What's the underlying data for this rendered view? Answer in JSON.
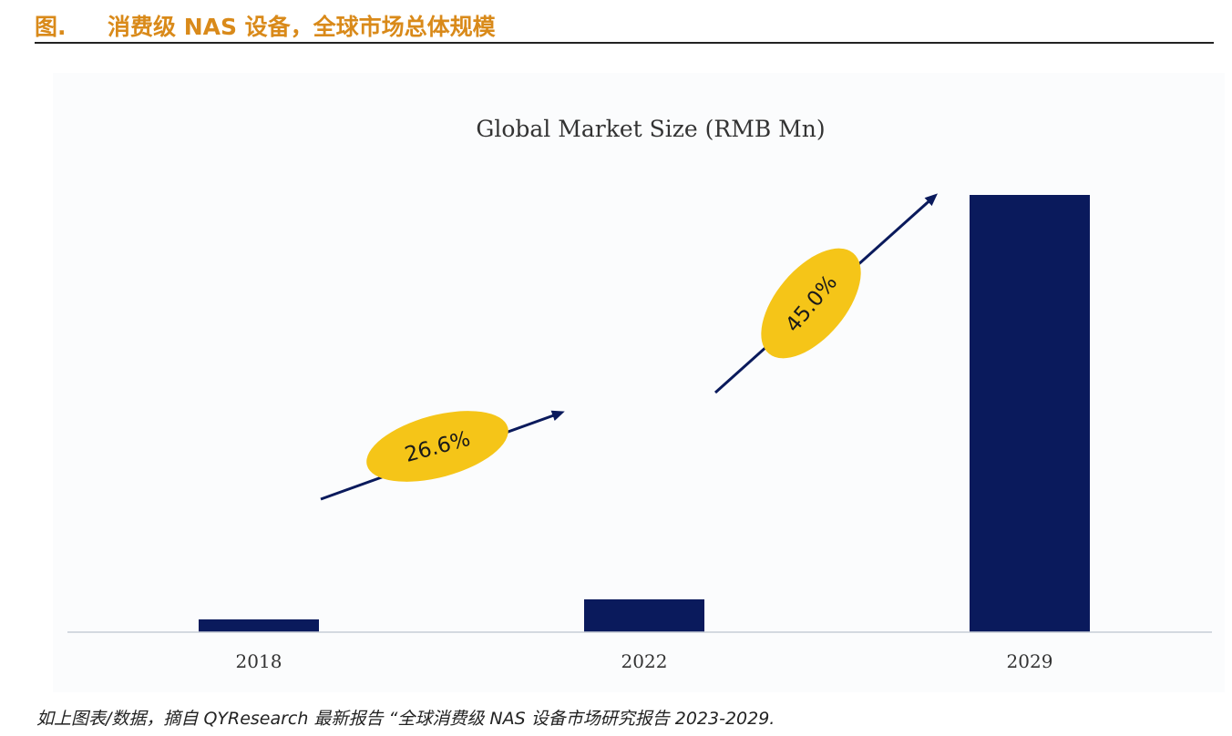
{
  "header": {
    "figure_label": "图.",
    "title": "消费级 NAS 设备，全球市场总体规模"
  },
  "chart_data": {
    "type": "bar",
    "title": "Global Market Size (RMB Mn)",
    "categories": [
      "2018",
      "2022",
      "2029"
    ],
    "values": [
      14,
      36,
      480
    ],
    "xlabel": "",
    "ylabel": "",
    "ylim": [
      0,
      500
    ],
    "grid": false,
    "bar_color": "#0a1a5c",
    "annotations": [
      {
        "label": "26.6%",
        "from": "2018",
        "to": "2022",
        "fill": "#f5c518"
      },
      {
        "label": "45.0%",
        "from": "2022",
        "to": "2029",
        "fill": "#f5c518"
      }
    ]
  },
  "footnote": "如上图表/数据，摘自 QYResearch 最新报告 “全球消费级 NAS 设备市场研究报告 2023-2029."
}
